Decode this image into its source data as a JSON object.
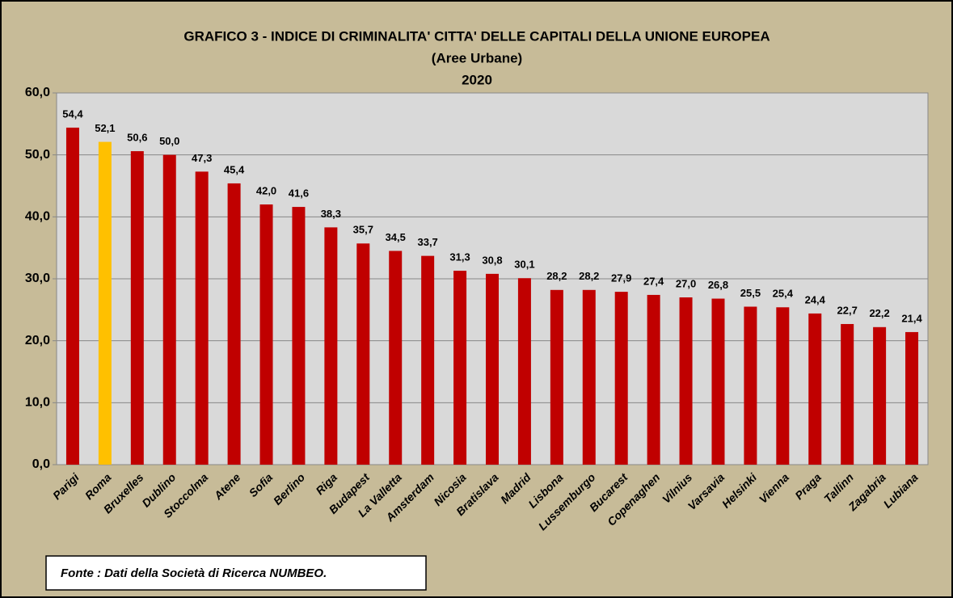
{
  "chart_data": {
    "type": "bar",
    "title": [
      "GRAFICO 3 - INDICE DI CRIMINALITA' CITTA' DELLE CAPITALI DELLA UNIONE EUROPEA",
      "(Aree Urbane)",
      "2020"
    ],
    "categories": [
      "Parigi",
      "Roma",
      "Bruxelles",
      "Dublino",
      "Stoccolma",
      "Atene",
      "Sofia",
      "Berlino",
      "Riga",
      "Budapest",
      "La Valletta",
      "Amsterdam",
      "Nicosia",
      "Bratislava",
      "Madrid",
      "Lisbona",
      "Lussemburgo",
      "Bucarest",
      "Copenaghen",
      "Vilnius",
      "Varsavia",
      "Helsinki",
      "Vienna",
      "Praga",
      "Tallinn",
      "Zagabria",
      "Lubiana"
    ],
    "values": [
      54.4,
      52.1,
      50.6,
      50.0,
      47.3,
      45.4,
      42.0,
      41.6,
      38.3,
      35.7,
      34.5,
      33.7,
      31.3,
      30.8,
      30.1,
      28.2,
      28.2,
      27.9,
      27.4,
      27.0,
      26.8,
      25.5,
      25.4,
      24.4,
      22.7,
      22.2,
      21.4
    ],
    "value_labels": [
      "54,4",
      "52,1",
      "50,6",
      "50,0",
      "47,3",
      "45,4",
      "42,0",
      "41,6",
      "38,3",
      "35,7",
      "34,5",
      "33,7",
      "31,3",
      "30,8",
      "30,1",
      "28,2",
      "28,2",
      "27,9",
      "27,4",
      "27,0",
      "26,8",
      "25,5",
      "25,4",
      "24,4",
      "22,7",
      "22,2",
      "21,4"
    ],
    "colors": [
      "#c00000",
      "#ffc000",
      "#c00000",
      "#c00000",
      "#c00000",
      "#c00000",
      "#c00000",
      "#c00000",
      "#c00000",
      "#c00000",
      "#c00000",
      "#c00000",
      "#c00000",
      "#c00000",
      "#c00000",
      "#c00000",
      "#c00000",
      "#c00000",
      "#c00000",
      "#c00000",
      "#c00000",
      "#c00000",
      "#c00000",
      "#c00000",
      "#c00000",
      "#c00000",
      "#c00000"
    ],
    "ylim": [
      0,
      60
    ],
    "yticks": [
      {
        "value": 0,
        "label": "0,0"
      },
      {
        "value": 10,
        "label": "10,0"
      },
      {
        "value": 20,
        "label": "20,0"
      },
      {
        "value": 30,
        "label": "30,0"
      },
      {
        "value": 40,
        "label": "40,0"
      },
      {
        "value": 50,
        "label": "50,0"
      },
      {
        "value": 60,
        "label": "60,0"
      }
    ],
    "grid": true,
    "note": "Fonte : Dati della Società di Ricerca NUMBEO."
  }
}
